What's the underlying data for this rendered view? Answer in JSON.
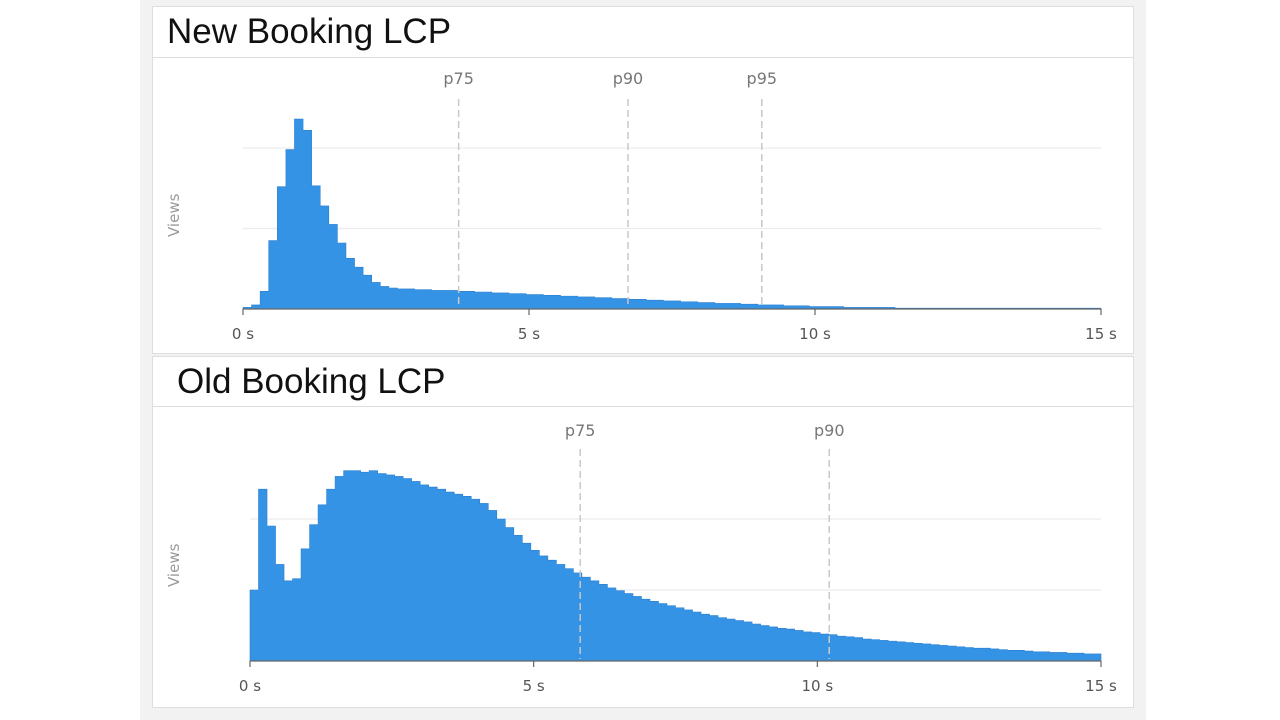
{
  "panels": [
    {
      "title": "New Booking LCP",
      "ylabel": "Views",
      "xticks": [
        "0 s",
        "5 s",
        "10 s",
        "15 s"
      ],
      "percentiles": [
        {
          "label": "p75",
          "value_s": 3.77
        },
        {
          "label": "p90",
          "value_s": 6.73
        },
        {
          "label": "p95",
          "value_s": 9.07
        }
      ]
    },
    {
      "title": "Old Booking LCP",
      "ylabel": "Views",
      "xticks": [
        "0 s",
        "5 s",
        "10 s",
        "15 s"
      ],
      "percentiles": [
        {
          "label": "p75",
          "value_s": 5.82
        },
        {
          "label": "p90",
          "value_s": 10.21
        }
      ]
    }
  ],
  "colors": {
    "bar": "#3593e6",
    "grid": "#ececec",
    "percentile_line": "#c8c8c8",
    "axis": "#666666"
  },
  "chart_data": [
    {
      "type": "bar",
      "title": "New Booking LCP",
      "xlabel": "",
      "ylabel": "Views",
      "x_unit": "s",
      "xlim": [
        0,
        15
      ],
      "bin_width_s": 0.15,
      "y_units": "relative (gridlines at 1 and 2; y-axis values unlabeled)",
      "ylim": [
        0,
        2.4
      ],
      "grid": true,
      "legend": null,
      "xticks": [
        0,
        5,
        10,
        15
      ],
      "percentile_markers": {
        "p75": 3.77,
        "p90": 6.73,
        "p95": 9.07
      },
      "values": [
        0.02,
        0.05,
        0.22,
        0.85,
        1.52,
        1.98,
        2.36,
        2.22,
        1.53,
        1.28,
        1.05,
        0.82,
        0.63,
        0.52,
        0.42,
        0.33,
        0.28,
        0.26,
        0.25,
        0.25,
        0.24,
        0.24,
        0.23,
        0.23,
        0.23,
        0.22,
        0.22,
        0.21,
        0.21,
        0.2,
        0.2,
        0.19,
        0.19,
        0.18,
        0.18,
        0.17,
        0.17,
        0.16,
        0.16,
        0.15,
        0.15,
        0.14,
        0.14,
        0.13,
        0.13,
        0.12,
        0.12,
        0.11,
        0.11,
        0.1,
        0.1,
        0.09,
        0.09,
        0.08,
        0.08,
        0.07,
        0.07,
        0.07,
        0.06,
        0.06,
        0.05,
        0.05,
        0.05,
        0.04,
        0.04,
        0.04,
        0.03,
        0.03,
        0.03,
        0.03,
        0.02,
        0.02,
        0.02,
        0.02,
        0.02,
        0.02,
        0.01,
        0.01,
        0.01,
        0.01,
        0.01,
        0.01,
        0.01,
        0.01,
        0.01,
        0.01,
        0.01,
        0.01,
        0.01,
        0.01,
        0.01,
        0.01,
        0.01,
        0.01,
        0.01,
        0.01,
        0.01,
        0.01,
        0.01,
        0.01
      ]
    },
    {
      "type": "bar",
      "title": "Old Booking LCP",
      "xlabel": "",
      "ylabel": "Views",
      "x_unit": "s",
      "xlim": [
        0,
        15
      ],
      "bin_width_s": 0.15,
      "y_units": "relative (gridlines at 1 and 2; y-axis values unlabeled)",
      "ylim": [
        0,
        2.8
      ],
      "grid": true,
      "legend": null,
      "xticks": [
        0,
        5,
        10,
        15
      ],
      "percentile_markers": {
        "p75": 5.82,
        "p90": 10.21
      },
      "values": [
        1.0,
        2.42,
        1.9,
        1.36,
        1.13,
        1.16,
        1.58,
        1.92,
        2.2,
        2.42,
        2.6,
        2.68,
        2.68,
        2.66,
        2.68,
        2.64,
        2.62,
        2.6,
        2.57,
        2.53,
        2.48,
        2.45,
        2.42,
        2.38,
        2.35,
        2.32,
        2.28,
        2.22,
        2.12,
        2.0,
        1.88,
        1.77,
        1.66,
        1.56,
        1.48,
        1.42,
        1.36,
        1.3,
        1.24,
        1.18,
        1.13,
        1.08,
        1.03,
        0.99,
        0.95,
        0.91,
        0.87,
        0.84,
        0.81,
        0.78,
        0.75,
        0.72,
        0.69,
        0.66,
        0.64,
        0.61,
        0.59,
        0.57,
        0.55,
        0.52,
        0.5,
        0.48,
        0.46,
        0.45,
        0.43,
        0.41,
        0.4,
        0.38,
        0.37,
        0.35,
        0.34,
        0.33,
        0.31,
        0.3,
        0.29,
        0.28,
        0.27,
        0.26,
        0.25,
        0.24,
        0.23,
        0.22,
        0.21,
        0.2,
        0.19,
        0.18,
        0.18,
        0.17,
        0.16,
        0.15,
        0.15,
        0.14,
        0.13,
        0.13,
        0.12,
        0.12,
        0.11,
        0.11,
        0.1,
        0.1
      ]
    }
  ]
}
